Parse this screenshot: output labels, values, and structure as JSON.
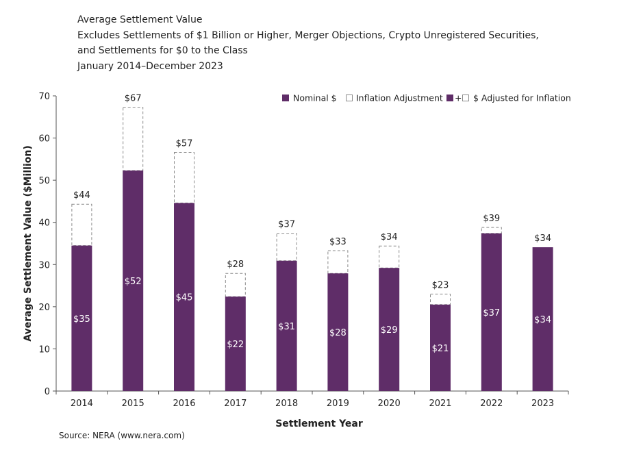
{
  "chart_data": {
    "type": "bar",
    "title": "Average Settlement Value",
    "subtitle_lines": [
      "Excludes Settlements of $1 Billion or Higher, Merger Objections, Crypto Unregistered Securities,",
      "and Settlements for $0 to the Class",
      "January 2014–December 2023"
    ],
    "xlabel": "Settlement Year",
    "ylabel": "Average Settlement Value ($Million)",
    "ylim": [
      0,
      70
    ],
    "yticks": [
      0,
      10,
      20,
      30,
      40,
      50,
      60,
      70
    ],
    "categories": [
      "2014",
      "2015",
      "2016",
      "2017",
      "2018",
      "2019",
      "2020",
      "2021",
      "2022",
      "2023"
    ],
    "series": [
      {
        "name": "Nominal $",
        "values": [
          34.5,
          52.3,
          44.6,
          22.4,
          30.9,
          27.9,
          29.2,
          20.5,
          37.4,
          34.1
        ],
        "labels": [
          "$35",
          "$52",
          "$45",
          "$22",
          "$31",
          "$28",
          "$29",
          "$21",
          "$37",
          "$34"
        ]
      },
      {
        "name": "Inflation Adjustment",
        "values": [
          44.3,
          67.3,
          56.6,
          27.9,
          37.4,
          33.3,
          34.4,
          23.0,
          38.8,
          34.1
        ]
      },
      {
        "name": "$ Adjusted for Inflation",
        "labels": [
          "$44",
          "$67",
          "$57",
          "$28",
          "$37",
          "$33",
          "$34",
          "$23",
          "$39",
          "$34"
        ]
      }
    ],
    "legend": {
      "position": "top-right",
      "combined_marker_text": "+"
    },
    "grid": false,
    "colors": {
      "nominal": "#5f2d68",
      "adjustment_border": "#8a8a8a",
      "axis": "#555555"
    }
  },
  "source": "Source: NERA (www.nera.com)"
}
